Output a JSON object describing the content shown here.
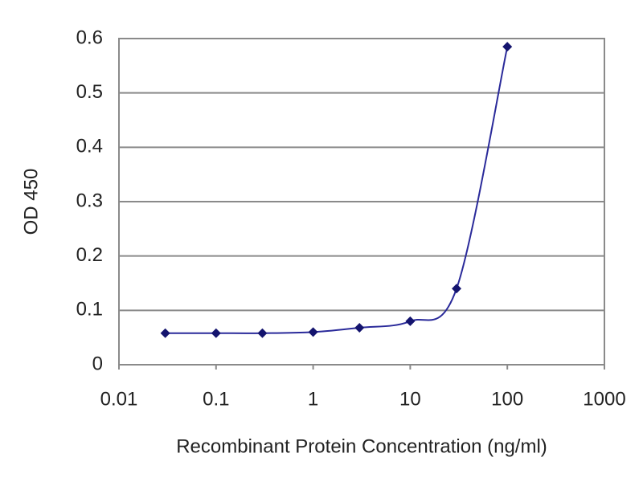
{
  "chart_data": {
    "type": "line",
    "x_label": "Recombinant Protein Concentration (ng/ml)",
    "y_label": "OD 450",
    "xscale": "log",
    "x": [
      0.03,
      0.1,
      0.3,
      1,
      3,
      10,
      30,
      100
    ],
    "series": [
      {
        "color": "#2a2a9a",
        "values": [
          0.058,
          0.058,
          0.058,
          0.06,
          0.068,
          0.08,
          0.14,
          0.585
        ]
      }
    ],
    "xlim": [
      0.01,
      1000
    ],
    "xticks": [
      0.01,
      0.1,
      1,
      10,
      100,
      1000
    ],
    "ylim": [
      0,
      0.6
    ],
    "yticks": [
      0,
      0.1,
      0.2,
      0.3,
      0.4,
      0.5,
      0.6
    ],
    "grid": true
  }
}
